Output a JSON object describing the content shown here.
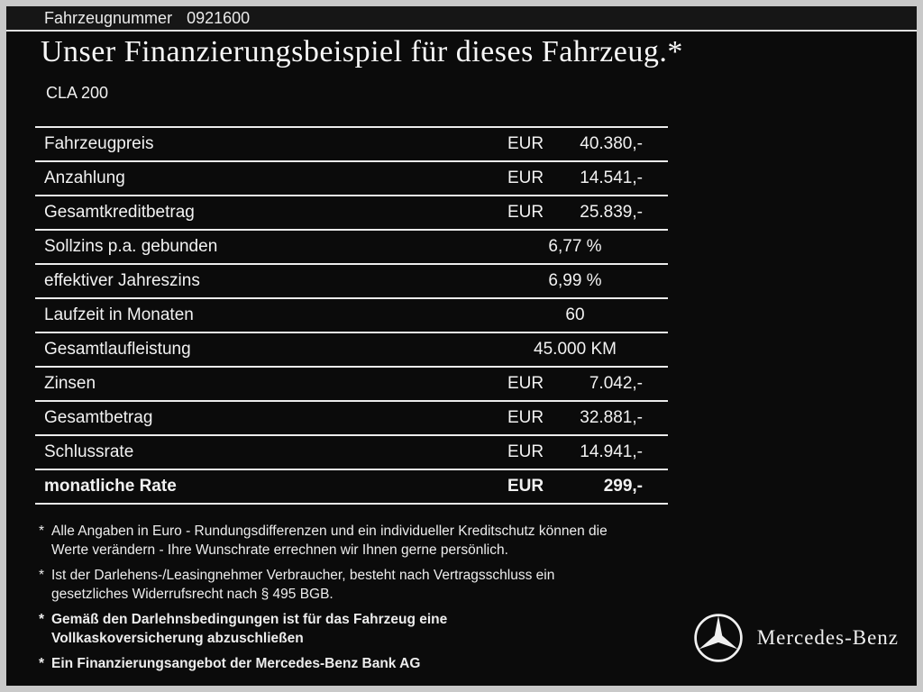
{
  "header": {
    "label": "Fahrzeugnummer",
    "number": "0921600"
  },
  "title": "Unser Finanzierungsbeispiel für dieses Fahrzeug.*",
  "model": "CLA 200",
  "colors": {
    "background": "#0b0b0b",
    "text": "#f2f2f2",
    "divider": "#ececec"
  },
  "table": {
    "rows": [
      {
        "label": "Fahrzeugpreis",
        "currency": "EUR",
        "value": "40.380,-",
        "bold": false
      },
      {
        "label": "Anzahlung",
        "currency": "EUR",
        "value": "14.541,-",
        "bold": false
      },
      {
        "label": "Gesamtkreditbetrag",
        "currency": "EUR",
        "value": "25.839,-",
        "bold": false
      },
      {
        "label": "Sollzins p.a. gebunden",
        "currency": "",
        "value": "6,77 %",
        "bold": false
      },
      {
        "label": "effektiver Jahreszins",
        "currency": "",
        "value": "6,99 %",
        "bold": false
      },
      {
        "label": "Laufzeit in Monaten",
        "currency": "",
        "value": "60",
        "bold": false
      },
      {
        "label": "Gesamtlaufleistung",
        "currency": "",
        "value": "45.000 KM",
        "bold": false
      },
      {
        "label": "Zinsen",
        "currency": "EUR",
        "value": "7.042,-",
        "bold": false
      },
      {
        "label": "Gesamtbetrag",
        "currency": "EUR",
        "value": "32.881,-",
        "bold": false
      },
      {
        "label": "Schlussrate",
        "currency": "EUR",
        "value": "14.941,-",
        "bold": false
      },
      {
        "label": "monatliche Rate",
        "currency": "EUR",
        "value": "299,-",
        "bold": true
      }
    ]
  },
  "footnotes": [
    {
      "marker": "*",
      "bold": false,
      "lines": [
        "Alle Angaben in Euro - Rundungsdifferenzen und ein individueller Kreditschutz können die",
        "Werte verändern - Ihre Wunschrate errechnen wir Ihnen gerne persönlich."
      ]
    },
    {
      "marker": "*",
      "bold": false,
      "lines": [
        "Ist der Darlehens-/Leasingnehmer Verbraucher, besteht nach Vertragsschluss ein",
        "gesetzliches Widerrufsrecht nach § 495 BGB."
      ]
    },
    {
      "marker": "*",
      "bold": true,
      "lines": [
        "Gemäß den Darlehnsbedingungen ist für das Fahrzeug eine",
        "Vollkaskoversicherung abzuschließen"
      ]
    },
    {
      "marker": "*",
      "bold": true,
      "lines": [
        "Ein Finanzierungsangebot der Mercedes-Benz Bank AG"
      ]
    }
  ],
  "brand": {
    "name": "Mercedes-Benz",
    "logo": "mercedes-star-icon"
  }
}
